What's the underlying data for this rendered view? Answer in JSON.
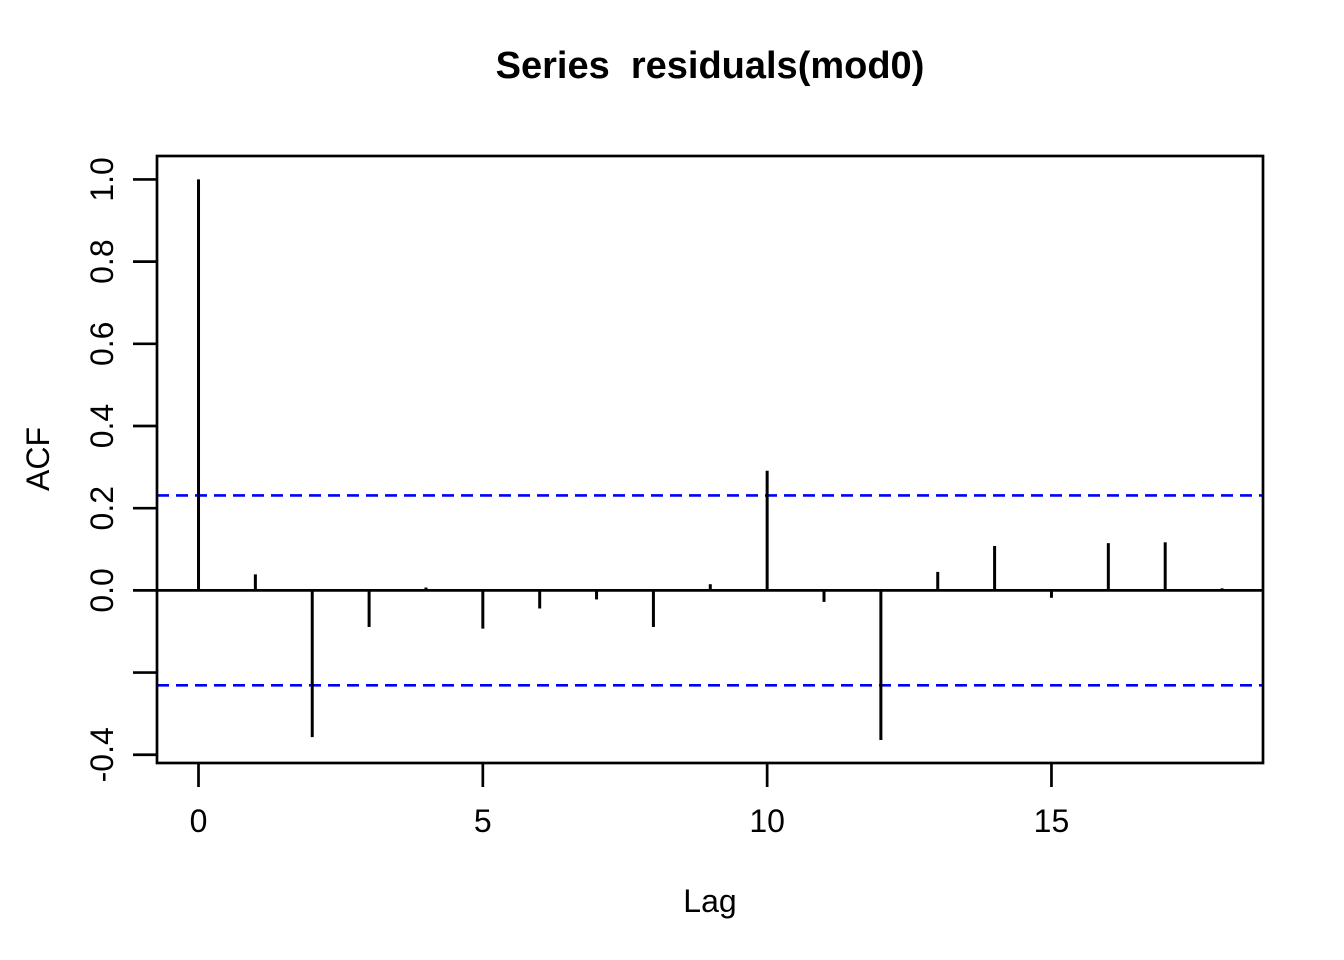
{
  "figure": {
    "title": "Series  residuals(mod0)"
  },
  "chart_data": {
    "type": "bar",
    "variant": "acf-stem-plot",
    "title": "Series  residuals(mod0)",
    "xlabel": "Lag",
    "ylabel": "ACF",
    "x": [
      0,
      1,
      2,
      3,
      4,
      5,
      6,
      7,
      8,
      9,
      10,
      11,
      12,
      13,
      14,
      15,
      16,
      17,
      18
    ],
    "values": [
      1.0,
      0.039,
      -0.357,
      -0.089,
      0.007,
      -0.093,
      -0.044,
      -0.022,
      -0.089,
      0.015,
      0.291,
      -0.028,
      -0.364,
      0.045,
      0.108,
      -0.018,
      0.115,
      0.117,
      0.005
    ],
    "confidence_bands": [
      0.231,
      -0.231
    ],
    "xlim": [
      -0.73,
      18.72
    ],
    "ylim": [
      -0.42,
      1.057
    ],
    "xticks": [
      {
        "value": 0,
        "label": "0"
      },
      {
        "value": 5,
        "label": "5"
      },
      {
        "value": 10,
        "label": "10"
      },
      {
        "value": 15,
        "label": "15"
      }
    ],
    "yticks": [
      {
        "value": 1.0,
        "label": "1.0"
      },
      {
        "value": 0.8,
        "label": "0.8"
      },
      {
        "value": 0.6,
        "label": "0.6"
      },
      {
        "value": 0.4,
        "label": "0.4"
      },
      {
        "value": 0.2,
        "label": "0.2"
      },
      {
        "value": 0.0,
        "label": "0.0"
      },
      {
        "value": -0.2,
        "label": ""
      },
      {
        "value": -0.4,
        "label": "-0.4"
      }
    ],
    "colors": {
      "series": "#000000",
      "confidence": "#0000FF",
      "background": "#FFFFFF",
      "frame": "#000000"
    },
    "grid": false,
    "legend": false
  }
}
